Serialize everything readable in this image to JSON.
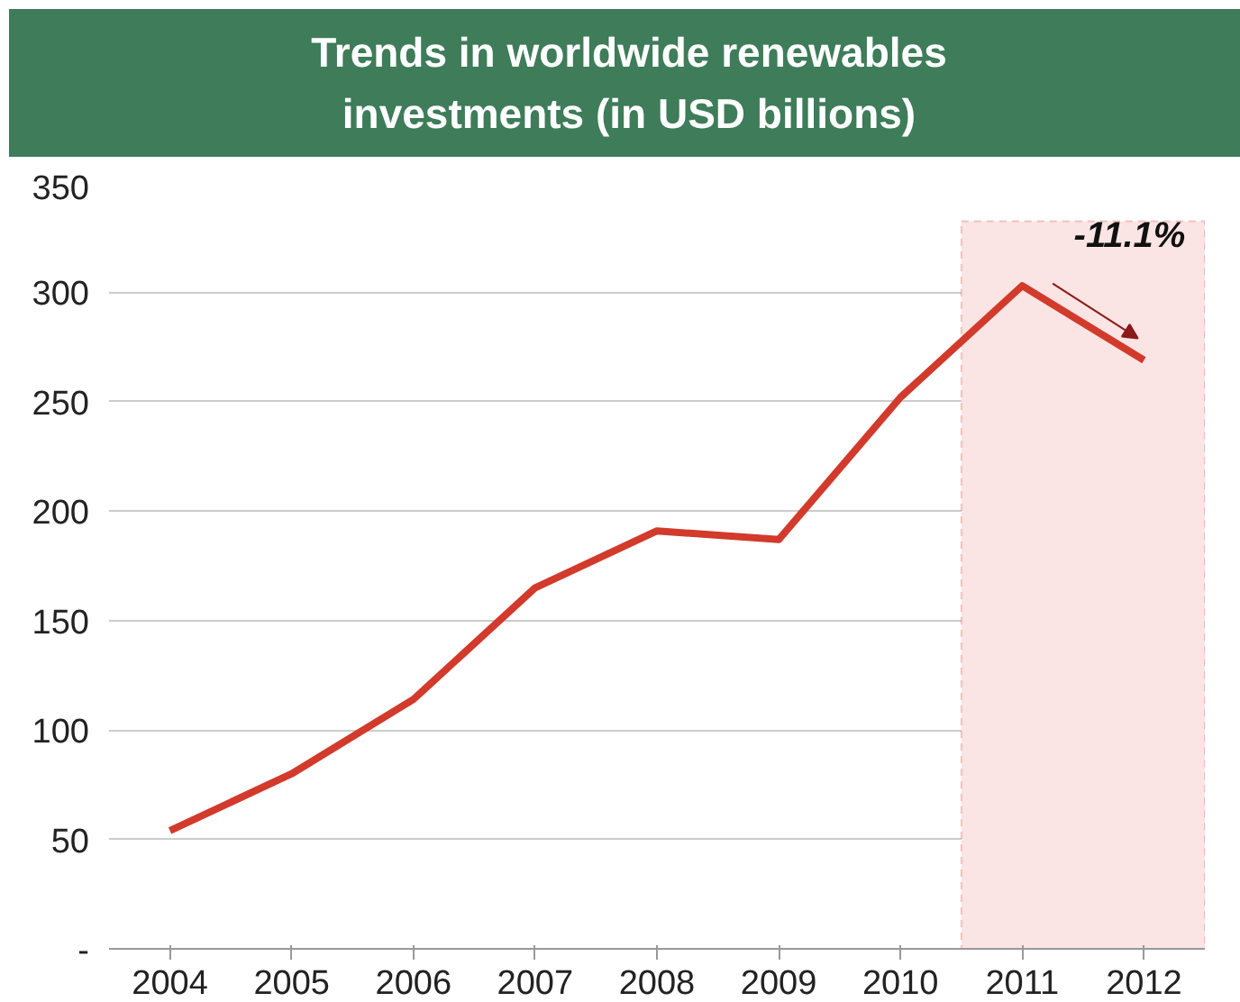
{
  "chart_data": {
    "type": "line",
    "title": "Trends in worldwide renewables investments (in USD billions)",
    "categories": [
      "2004",
      "2005",
      "2006",
      "2007",
      "2008",
      "2009",
      "2010",
      "2011",
      "2012"
    ],
    "series": [
      {
        "color": "#d23a2c",
        "values": [
          54,
          80,
          114,
          165,
          191,
          187,
          252,
          303,
          269
        ]
      }
    ],
    "ylim": [
      0,
      350
    ],
    "yticks": [
      {
        "value": 0,
        "label": "-"
      },
      50,
      100,
      150,
      200,
      250,
      300,
      350
    ],
    "grid": "y",
    "bands": [
      {
        "axis": "x",
        "from": "2011",
        "to": "2012",
        "color": "#fbe4e4"
      }
    ],
    "annotations": [
      {
        "text": "-11.1%",
        "x": "2012",
        "y": 269
      }
    ]
  }
}
